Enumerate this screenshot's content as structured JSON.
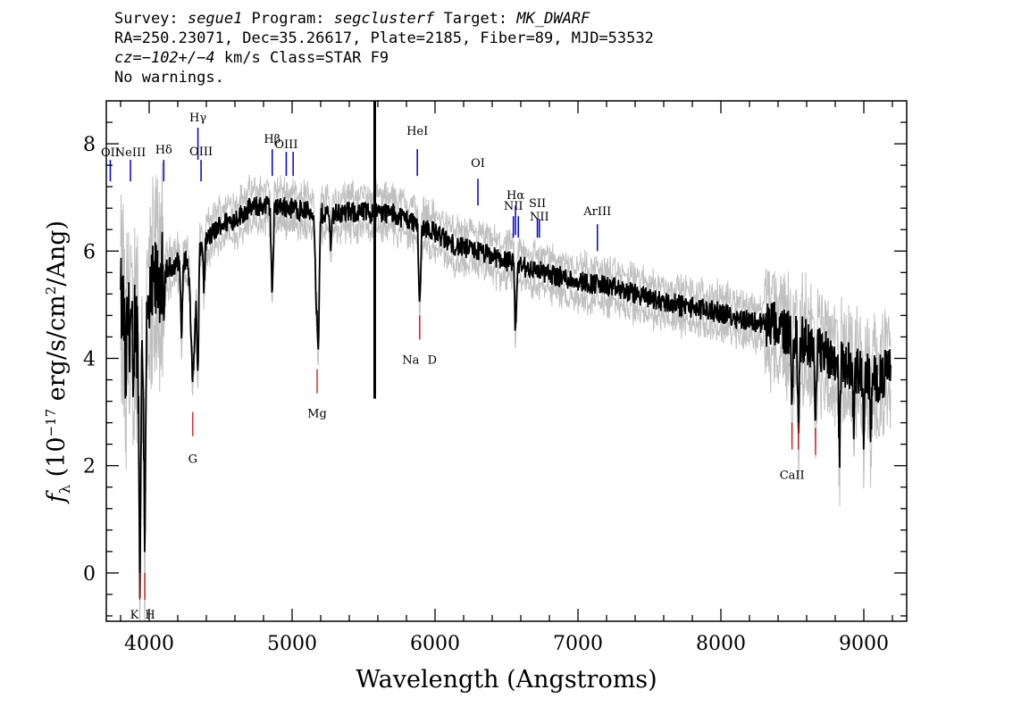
{
  "header": {
    "survey_label": "Survey: ",
    "survey": "segue1",
    "program_label": " Program: ",
    "program": "segclusterf",
    "target_label": " Target: ",
    "target": "MK_DWARF",
    "line2": "RA=250.23071, Dec=35.26617, Plate=2185, Fiber=89, MJD=53532",
    "cz_label": "cz=",
    "cz_value": "−102+/−4",
    "cz_rest": " km/s Class=STAR F9",
    "line4": "No warnings."
  },
  "chart_data": {
    "type": "line",
    "xlabel": "Wavelength (Angstroms)",
    "ylabel_prefix": "f",
    "ylabel_sub": "λ",
    "ylabel_mid": " (10",
    "ylabel_exp": "−17",
    "ylabel_units": " erg/s/cm",
    "ylabel_exp2": "2",
    "ylabel_end": "/Ang)",
    "xlim": [
      3700,
      9300
    ],
    "ylim": [
      -0.9,
      8.8
    ],
    "x_ticks": [
      4000,
      5000,
      6000,
      7000,
      8000,
      9000
    ],
    "x_tick_labels": [
      "4000",
      "5000",
      "6000",
      "7000",
      "8000",
      "9000"
    ],
    "y_ticks": [
      0,
      2,
      4,
      6,
      8
    ],
    "y_tick_labels": [
      "0",
      "2",
      "4",
      "6",
      "8"
    ],
    "colors": {
      "flux": "#000000",
      "error": "#c0c0c0",
      "emission": "#0000cc",
      "absorption": "#cc0000"
    },
    "spectrum_knots": [
      [
        3800,
        5.0
      ],
      [
        3860,
        4.6
      ],
      [
        3900,
        5.0
      ],
      [
        3940,
        3.6
      ],
      [
        3980,
        4.5
      ],
      [
        4030,
        5.3
      ],
      [
        4100,
        5.6
      ],
      [
        4200,
        5.8
      ],
      [
        4300,
        5.9
      ],
      [
        4400,
        6.2
      ],
      [
        4500,
        6.5
      ],
      [
        4600,
        6.6
      ],
      [
        4700,
        6.8
      ],
      [
        4800,
        6.85
      ],
      [
        4900,
        6.85
      ],
      [
        5000,
        6.8
      ],
      [
        5100,
        6.75
      ],
      [
        5200,
        6.7
      ],
      [
        5300,
        6.7
      ],
      [
        5400,
        6.72
      ],
      [
        5500,
        6.72
      ],
      [
        5600,
        6.72
      ],
      [
        5700,
        6.7
      ],
      [
        5800,
        6.6
      ],
      [
        5900,
        6.5
      ],
      [
        6000,
        6.35
      ],
      [
        6100,
        6.15
      ],
      [
        6200,
        6.05
      ],
      [
        6300,
        6.0
      ],
      [
        6400,
        5.9
      ],
      [
        6500,
        5.82
      ],
      [
        6600,
        5.72
      ],
      [
        6700,
        5.65
      ],
      [
        6800,
        5.58
      ],
      [
        6900,
        5.5
      ],
      [
        7000,
        5.45
      ],
      [
        7200,
        5.35
      ],
      [
        7400,
        5.2
      ],
      [
        7600,
        5.05
      ],
      [
        7800,
        4.95
      ],
      [
        8000,
        4.85
      ],
      [
        8200,
        4.7
      ],
      [
        8400,
        4.6
      ],
      [
        8600,
        4.3
      ],
      [
        8800,
        4.0
      ],
      [
        9000,
        3.7
      ],
      [
        9100,
        3.6
      ],
      [
        9190,
        3.8
      ]
    ],
    "absorption_dips": [
      [
        3934,
        3.8,
        5
      ],
      [
        3969,
        3.4,
        5
      ],
      [
        3889,
        2.0,
        5
      ],
      [
        3835,
        1.3,
        5
      ],
      [
        4102,
        1.0,
        5
      ],
      [
        4227,
        1.4,
        6
      ],
      [
        4306,
        2.2,
        15
      ],
      [
        4340,
        2.2,
        6
      ],
      [
        4384,
        0.8,
        5
      ],
      [
        4861,
        1.6,
        7
      ],
      [
        5167,
        1.5,
        6
      ],
      [
        5183,
        2.6,
        7
      ],
      [
        5270,
        0.5,
        6
      ],
      [
        5893,
        1.5,
        7
      ],
      [
        6563,
        1.3,
        6
      ],
      [
        8498,
        1.2,
        5
      ],
      [
        8542,
        1.6,
        5
      ],
      [
        8662,
        1.6,
        5
      ],
      [
        8830,
        1.7,
        5
      ],
      [
        8930,
        1.0,
        5
      ],
      [
        9000,
        1.2,
        5
      ],
      [
        9050,
        1.0,
        5
      ],
      [
        8400,
        0.6,
        5
      ]
    ],
    "sky_spike": {
      "x": 5578,
      "y_top": 8.8,
      "y_bottom": 3.25
    },
    "emission_lines": [
      {
        "label": "OII",
        "x": 3728,
        "y1": 7.3,
        "y2": 7.7,
        "label_y": 7.7
      },
      {
        "label": "NeIII",
        "x": 3869,
        "y1": 7.3,
        "y2": 7.7,
        "label_y": 7.7
      },
      {
        "label": "Hδ",
        "x": 4102,
        "y1": 7.3,
        "y2": 7.7,
        "label_y": 7.75
      },
      {
        "label": "Hγ",
        "x": 4341,
        "y1": 7.7,
        "y2": 8.3,
        "label_y": 8.35
      },
      {
        "label": "OIII",
        "x": 4363,
        "y1": 7.3,
        "y2": 7.7,
        "label_y": 7.72
      },
      {
        "label": "Hβ",
        "x": 4861,
        "y1": 7.4,
        "y2": 7.9,
        "label_y": 7.95
      },
      {
        "label": "OIII",
        "x": 4959,
        "y1": 7.4,
        "y2": 7.85,
        "label_y": 7.85
      },
      {
        "label": "",
        "x": 5007,
        "y1": 7.4,
        "y2": 7.85,
        "label_y": 7.85
      },
      {
        "label": "HeI",
        "x": 5876,
        "y1": 7.4,
        "y2": 7.9,
        "label_y": 8.1
      },
      {
        "label": "OI",
        "x": 6300,
        "y1": 6.85,
        "y2": 7.35,
        "label_y": 7.5
      },
      {
        "label": "NII",
        "x": 6548,
        "y1": 6.25,
        "y2": 6.65,
        "label_y": 6.7
      },
      {
        "label": "Hα",
        "x": 6563,
        "y1": 6.3,
        "y2": 6.85,
        "label_y": 6.9
      },
      {
        "label": "",
        "x": 6583,
        "y1": 6.25,
        "y2": 6.65,
        "label_y": 6.65
      },
      {
        "label": "SII",
        "x": 6716,
        "y1": 6.25,
        "y2": 6.6,
        "label_y": 6.75
      },
      {
        "label": "NII",
        "x": 6730,
        "y1": 6.25,
        "y2": 6.6,
        "label_y": 6.5
      },
      {
        "label": "ArIII",
        "x": 7136,
        "y1": 6.0,
        "y2": 6.5,
        "label_y": 6.6
      }
    ],
    "absorption_lines": [
      {
        "label": "K",
        "x": 3934,
        "y1": -0.5,
        "y2": 0.0,
        "label_y": -0.65
      },
      {
        "label": "H",
        "x": 3969,
        "y1": -0.5,
        "y2": 0.0,
        "label_y": -0.65
      },
      {
        "label": "G",
        "x": 4305,
        "y1": 2.55,
        "y2": 3.0,
        "label_y": 2.25
      },
      {
        "label": "Mg",
        "x": 5175,
        "y1": 3.35,
        "y2": 3.8,
        "label_y": 3.1
      },
      {
        "label": "Na",
        "x": 5893,
        "y1": 4.35,
        "y2": 4.8,
        "label_y": 4.1
      },
      {
        "label": "D",
        "x": 5893,
        "y1": 4.35,
        "y2": 4.8,
        "label_y": 4.1
      },
      {
        "label": "CaII",
        "x": 8498,
        "y1": 2.3,
        "y2": 2.8,
        "label_y": 1.95
      },
      {
        "label": "",
        "x": 8542,
        "y1": 2.3,
        "y2": 2.8,
        "label_y": 1.95
      },
      {
        "label": "",
        "x": 8662,
        "y1": 2.2,
        "y2": 2.7,
        "label_y": 1.95
      }
    ]
  }
}
